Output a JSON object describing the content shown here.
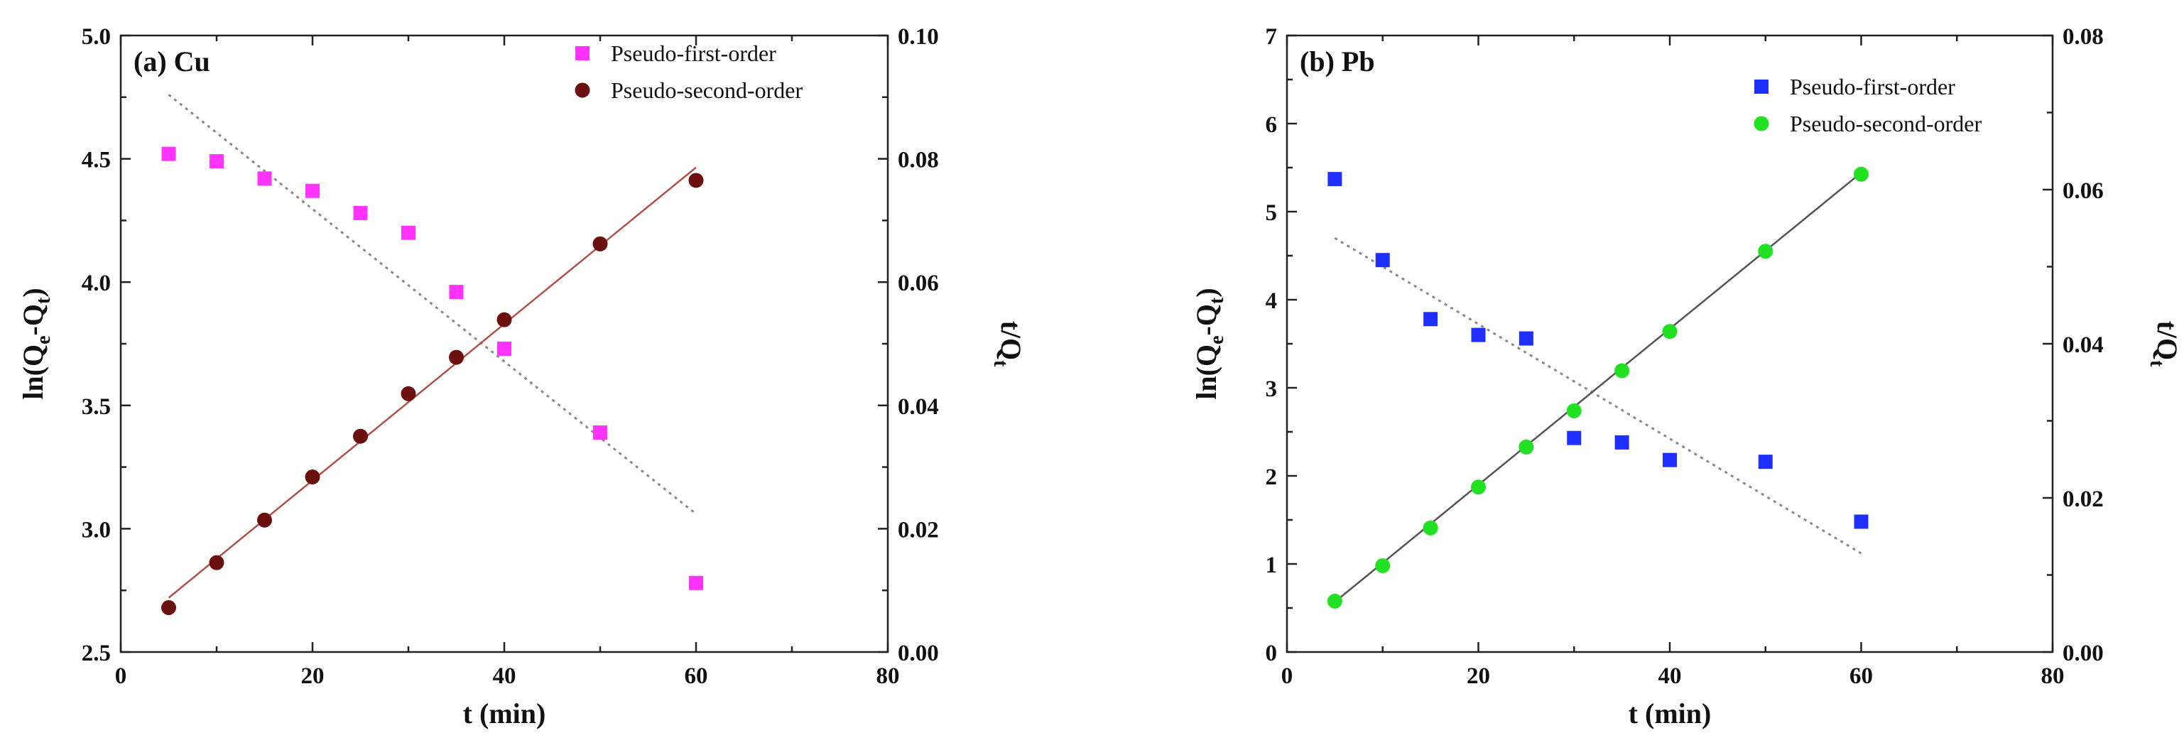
{
  "chart_data": [
    {
      "type": "scatter",
      "panel_label": "(a) Cu",
      "xlabel": "t (min)",
      "ylabel_left": {
        "base": "ln(Q",
        "sub1": "e",
        "mid": "-Q",
        "sub2": "t",
        "end": ")"
      },
      "ylabel_right": {
        "base": "t/Q",
        "sub": "t"
      },
      "xlim": [
        0,
        80
      ],
      "ylim_left": [
        2.5,
        5.0
      ],
      "ylim_right": [
        0.0,
        0.1
      ],
      "x_ticks": [
        0,
        20,
        40,
        60,
        80
      ],
      "x_tick_labels": [
        "0",
        "20",
        "40",
        "60",
        "80"
      ],
      "left_ticks": [
        2.5,
        3.0,
        3.5,
        4.0,
        4.5,
        5.0
      ],
      "left_tick_labels": [
        "2.5",
        "3.0",
        "3.5",
        "4.0",
        "4.5",
        "5.0"
      ],
      "right_ticks": [
        0.0,
        0.02,
        0.04,
        0.06,
        0.08,
        0.1
      ],
      "right_tick_labels": [
        "0.00",
        "0.02",
        "0.04",
        "0.06",
        "0.08",
        "0.10"
      ],
      "legend": {
        "placement": "top-right"
      },
      "series": [
        {
          "name": "Pseudo-first-order",
          "axis": "left",
          "marker": "square",
          "color": "#FF33FF",
          "x": [
            5,
            10,
            15,
            20,
            25,
            30,
            35,
            40,
            50,
            60
          ],
          "y": [
            4.52,
            4.49,
            4.42,
            4.37,
            4.28,
            4.2,
            3.96,
            3.73,
            3.39,
            2.78
          ],
          "fit": {
            "x": [
              5,
              60
            ],
            "y": [
              4.76,
              3.06
            ],
            "style": "dotted",
            "color": "#888888"
          }
        },
        {
          "name": "Pseudo-second-order",
          "axis": "right",
          "marker": "circle",
          "color": "#6B0F0F",
          "x": [
            5,
            10,
            15,
            20,
            25,
            30,
            35,
            40,
            50,
            60
          ],
          "y": [
            0.0072,
            0.0145,
            0.0214,
            0.0284,
            0.035,
            0.0419,
            0.0478,
            0.0539,
            0.0662,
            0.0765
          ],
          "fit": {
            "x": [
              5,
              60
            ],
            "y": [
              0.0088,
              0.0786
            ],
            "style": "solid",
            "color": "#B0504A"
          }
        }
      ]
    },
    {
      "type": "scatter",
      "panel_label": "(b) Pb",
      "xlabel": "t (min)",
      "ylabel_left": {
        "base": "ln(Q",
        "sub1": "e",
        "mid": "-Q",
        "sub2": "t",
        "end": ")"
      },
      "ylabel_right": {
        "base": "t/Q",
        "sub": "t"
      },
      "xlim": [
        0,
        80
      ],
      "ylim_left": [
        0,
        7
      ],
      "ylim_right": [
        0.0,
        0.08
      ],
      "x_ticks": [
        0,
        20,
        40,
        60,
        80
      ],
      "x_tick_labels": [
        "0",
        "20",
        "40",
        "60",
        "80"
      ],
      "left_ticks": [
        0,
        1,
        2,
        3,
        4,
        5,
        6,
        7
      ],
      "left_tick_labels": [
        "0",
        "1",
        "2",
        "3",
        "4",
        "5",
        "6",
        "7"
      ],
      "right_ticks": [
        0.0,
        0.02,
        0.04,
        0.06,
        0.08
      ],
      "right_tick_labels": [
        "0.00",
        "0.02",
        "0.04",
        "0.06",
        "0.08"
      ],
      "legend": {
        "placement": "top-right"
      },
      "series": [
        {
          "name": "Pseudo-first-order",
          "axis": "left",
          "marker": "square",
          "color": "#1F2FFF",
          "x": [
            5,
            10,
            15,
            20,
            25,
            30,
            35,
            40,
            50,
            60
          ],
          "y": [
            5.37,
            4.45,
            3.78,
            3.6,
            3.56,
            2.43,
            2.38,
            2.18,
            2.16,
            1.48
          ],
          "fit": {
            "x": [
              5,
              60
            ],
            "y": [
              4.7,
              1.12
            ],
            "style": "dotted",
            "color": "#888888"
          }
        },
        {
          "name": "Pseudo-second-order",
          "axis": "right",
          "marker": "circle",
          "color": "#22E022",
          "x": [
            5,
            10,
            15,
            20,
            25,
            30,
            35,
            40,
            50,
            60
          ],
          "y": [
            0.0066,
            0.0112,
            0.0161,
            0.0214,
            0.0266,
            0.0313,
            0.0365,
            0.0416,
            0.052,
            0.062
          ],
          "fit": {
            "x": [
              5,
              60
            ],
            "y": [
              0.0065,
              0.0622
            ],
            "style": "solid",
            "color": "#555555"
          }
        }
      ]
    }
  ]
}
